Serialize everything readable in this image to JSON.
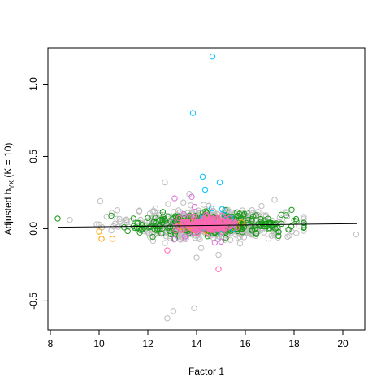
{
  "chart_data": {
    "type": "scatter",
    "title": "",
    "xlabel": "Factor 1",
    "ylabel": {
      "prefix": "Adjusted b",
      "sub": "YX",
      "suffix": " (K = 10)"
    },
    "xlim": [
      7.9,
      20.9
    ],
    "ylim": [
      -0.7,
      1.25
    ],
    "xticks": [
      8,
      10,
      12,
      14,
      16,
      18,
      20
    ],
    "yticks": [
      -0.5,
      0.0,
      0.5,
      1.0
    ],
    "ytick_labels": [
      "-0.5",
      "0.0",
      "0.5",
      "1.0"
    ],
    "grid": false,
    "legend": "none",
    "colors": {
      "gray": "#bebebe",
      "green": "#1a9a1a",
      "orange": "#ffa500",
      "pink": "#ff69b4",
      "magenta": "#da70d6",
      "cyan": "#00bfff",
      "fit": "#000000"
    },
    "trend_line": {
      "x": [
        8.3,
        20.6
      ],
      "y": [
        0.01,
        0.035
      ]
    },
    "cloud": {
      "gray": {
        "count": 700,
        "x_mean": 14.5,
        "x_sd": 1.55,
        "y_mean": 0.03,
        "y_sd": 0.05
      },
      "green": {
        "count": 320,
        "x_mean": 14.6,
        "x_sd": 1.55,
        "y_mean": 0.03,
        "y_sd": 0.035
      },
      "pink": {
        "count": 160,
        "x_mean": 14.5,
        "x_sd": 0.55,
        "y_mean": 0.03,
        "y_sd": 0.025
      },
      "orange": {
        "count": 40,
        "x_mean": 14.3,
        "x_sd": 0.6,
        "y_mean": 0.02,
        "y_sd": 0.025
      },
      "magenta": {
        "count": 25,
        "x_mean": 14.4,
        "x_sd": 0.6,
        "y_mean": 0.04,
        "y_sd": 0.05
      },
      "cyan": {
        "count": 15,
        "x_mean": 14.5,
        "x_sd": 0.5,
        "y_mean": 0.05,
        "y_sd": 0.04
      }
    },
    "notable_points": [
      {
        "x": 14.65,
        "y": 1.19,
        "color": "cyan"
      },
      {
        "x": 13.85,
        "y": 0.8,
        "color": "cyan"
      },
      {
        "x": 14.25,
        "y": 0.36,
        "color": "cyan"
      },
      {
        "x": 14.95,
        "y": 0.32,
        "color": "cyan"
      },
      {
        "x": 14.35,
        "y": 0.27,
        "color": "cyan"
      },
      {
        "x": 12.7,
        "y": 0.32,
        "color": "gray"
      },
      {
        "x": 13.7,
        "y": 0.24,
        "color": "gray"
      },
      {
        "x": 14.9,
        "y": -0.28,
        "color": "pink"
      },
      {
        "x": 13.05,
        "y": -0.57,
        "color": "gray"
      },
      {
        "x": 12.8,
        "y": -0.62,
        "color": "gray"
      },
      {
        "x": 13.9,
        "y": -0.55,
        "color": "gray"
      },
      {
        "x": 20.55,
        "y": -0.04,
        "color": "gray"
      },
      {
        "x": 8.3,
        "y": 0.07,
        "color": "green"
      },
      {
        "x": 8.8,
        "y": 0.06,
        "color": "gray"
      },
      {
        "x": 10.05,
        "y": 0.19,
        "color": "gray"
      },
      {
        "x": 10.0,
        "y": -0.02,
        "color": "orange"
      },
      {
        "x": 10.1,
        "y": -0.07,
        "color": "orange"
      },
      {
        "x": 10.55,
        "y": -0.07,
        "color": "orange"
      },
      {
        "x": 9.9,
        "y": 0.03,
        "color": "gray"
      },
      {
        "x": 10.5,
        "y": 0.09,
        "color": "green"
      },
      {
        "x": 18.1,
        "y": 0.05,
        "color": "green"
      },
      {
        "x": 17.9,
        "y": 0.13,
        "color": "green"
      },
      {
        "x": 17.2,
        "y": 0.2,
        "color": "gray"
      },
      {
        "x": 18.2,
        "y": 0.02,
        "color": "gray"
      },
      {
        "x": 14.0,
        "y": -0.2,
        "color": "gray"
      },
      {
        "x": 14.9,
        "y": -0.18,
        "color": "gray"
      },
      {
        "x": 12.8,
        "y": -0.15,
        "color": "pink"
      },
      {
        "x": 13.8,
        "y": 0.22,
        "color": "magenta"
      },
      {
        "x": 13.1,
        "y": 0.21,
        "color": "magenta"
      }
    ]
  }
}
